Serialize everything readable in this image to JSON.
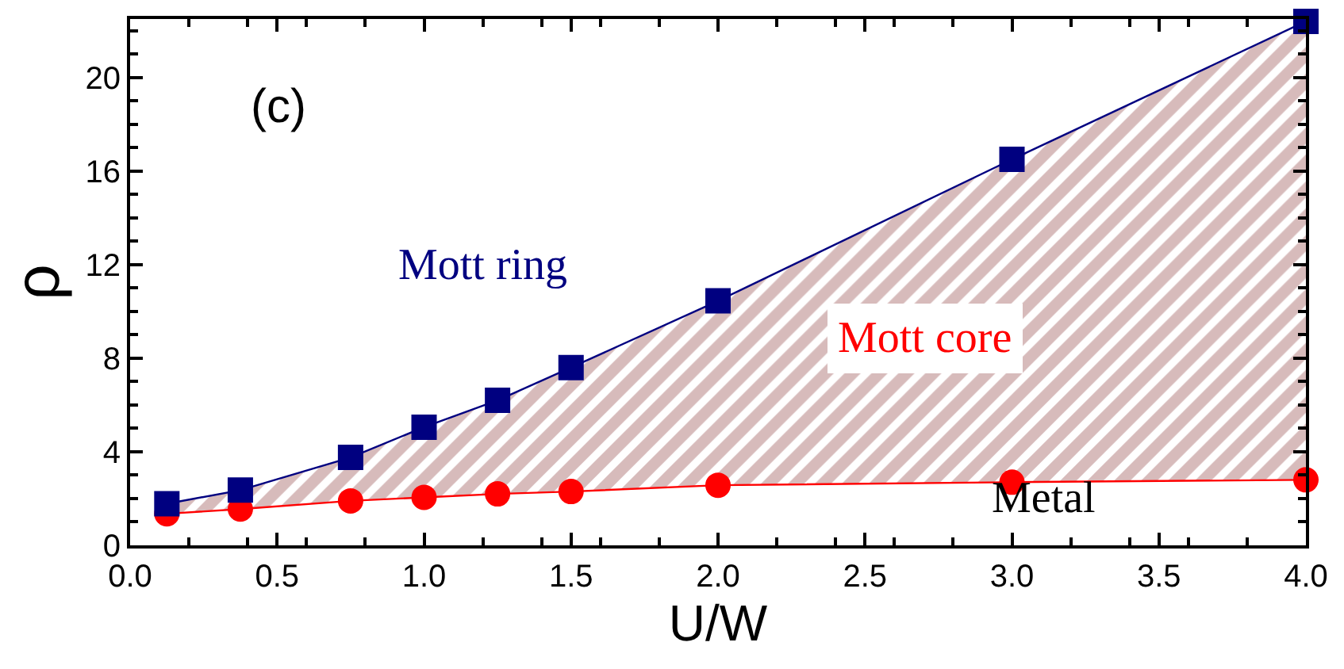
{
  "chart_data": {
    "type": "line",
    "xlabel": "U/W",
    "ylabel": "ρ",
    "xlim": [
      0,
      4
    ],
    "xticks": [
      {
        "value": 0,
        "label": "0.0"
      },
      {
        "value": 0.5,
        "label": "0.5"
      },
      {
        "value": 1,
        "label": "1.0"
      },
      {
        "value": 1.5,
        "label": "1.5"
      },
      {
        "value": 2,
        "label": "2.0"
      },
      {
        "value": 2.5,
        "label": "2.5"
      },
      {
        "value": 3,
        "label": "3.0"
      },
      {
        "value": 3.5,
        "label": "3.5"
      },
      {
        "value": 4,
        "label": "4.0"
      }
    ],
    "ylim": [
      0,
      22.5
    ],
    "yticks": [
      0,
      4,
      8,
      12,
      16,
      20
    ],
    "x": [
      0.125,
      0.375,
      0.75,
      1.0,
      1.25,
      1.5,
      2.0,
      3.0,
      4.0
    ],
    "series": [
      {
        "marker": "circle",
        "color": "#ff0000",
        "values": [
          1.35,
          1.55,
          1.9,
          2.05,
          2.2,
          2.3,
          2.57,
          2.7,
          2.8
        ]
      },
      {
        "type": "area",
        "marker": "square",
        "color": "#000080",
        "values": [
          1.78,
          2.36,
          3.76,
          5.05,
          6.2,
          7.6,
          10.45,
          16.5,
          22.4
        ]
      }
    ],
    "annotations": [
      "(c)",
      "Mott ring",
      "Mott core",
      "Metal"
    ]
  }
}
